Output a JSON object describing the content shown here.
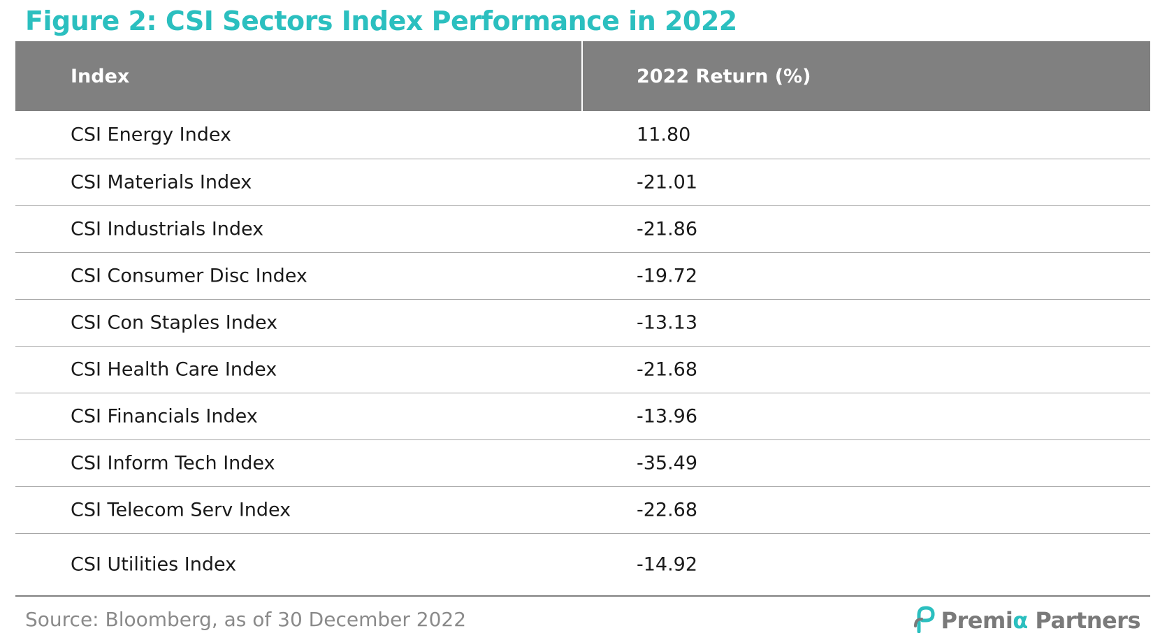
{
  "title": "Figure 2: CSI Sectors Index Performance in 2022",
  "table": {
    "headers": [
      "Index",
      "2022 Return (%)"
    ],
    "rows": [
      [
        "CSI Energy Index",
        "11.80"
      ],
      [
        "CSI Materials Index",
        "-21.01"
      ],
      [
        "CSI Industrials Index",
        "-21.86"
      ],
      [
        "CSI Consumer Disc Index",
        "-19.72"
      ],
      [
        "CSI Con Staples Index",
        "-13.13"
      ],
      [
        "CSI Health Care Index",
        "-21.68"
      ],
      [
        "CSI Financials Index",
        "-13.96"
      ],
      [
        "CSI Inform Tech Index",
        "-35.49"
      ],
      [
        "CSI Telecom Serv Index",
        "-22.68"
      ],
      [
        "CSI Utilities Index",
        "-14.92"
      ]
    ]
  },
  "footer": {
    "source": "Source: Bloomberg, as of 30 December 2022"
  },
  "logo": {
    "prefix": "Premi",
    "alpha": "α",
    "suffix": " Partners",
    "icon": "premia-partners-logo-icon"
  },
  "colors": {
    "accent": "#2bbfbf",
    "header_bg": "#808080"
  }
}
